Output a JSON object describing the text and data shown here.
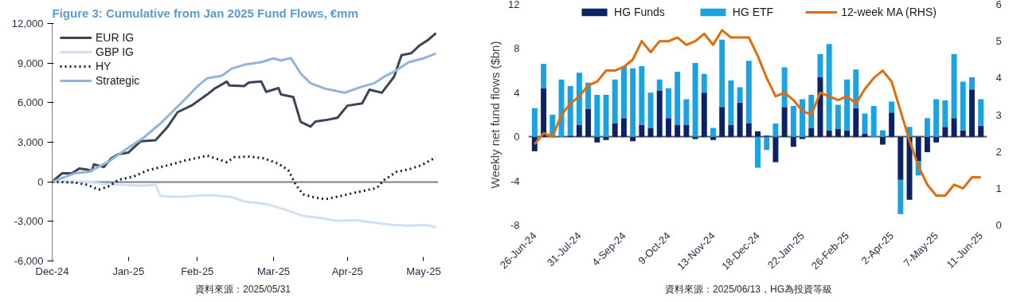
{
  "chart_data": [
    {
      "type": "line",
      "title": "Figure 3: Cumulative from Jan 2025 Fund Flows, €mm",
      "xlim": [
        "2024-12-31",
        "2025-06-06"
      ],
      "xticks": [
        {
          "value": "2024-12-31",
          "label": "Dec-24"
        },
        {
          "value": "2025-01-31",
          "label": "Jan-25"
        },
        {
          "value": "2025-02-28",
          "label": "Feb-25"
        },
        {
          "value": "2025-03-31",
          "label": "Mar-25"
        },
        {
          "value": "2025-04-30",
          "label": "Apr-25"
        },
        {
          "value": "2025-05-31",
          "label": "May-25"
        }
      ],
      "ylim": [
        -6000,
        12000
      ],
      "yticks": [
        {
          "value": -6000,
          "label": "-6,000"
        },
        {
          "value": -3000,
          "label": "-3,000"
        },
        0,
        {
          "value": 3000,
          "label": "3,000"
        },
        {
          "value": 6000,
          "label": "6,000"
        },
        {
          "value": 9000,
          "label": "9,000"
        },
        {
          "value": 12000,
          "label": "12,000"
        }
      ],
      "legend": "top left",
      "grid": false,
      "ref_lines": [
        {
          "axis": "y",
          "value": 0,
          "color": "#7f7f7f"
        }
      ],
      "annotations": [
        "資料來源：2025/05/31"
      ],
      "series": [
        {
          "name": "EUR IG",
          "color": "#3a4556",
          "line_style": "solid",
          "x": [
            "2024-12-31",
            "2025-01-04",
            "2025-01-08",
            "2025-01-11",
            "2025-01-14",
            "2025-01-16",
            "2025-01-17",
            "2025-01-21",
            "2025-01-24",
            "2025-01-27",
            "2025-01-31",
            "2025-02-05",
            "2025-02-11",
            "2025-02-16",
            "2025-02-20",
            "2025-02-26",
            "2025-03-04",
            "2025-03-07",
            "2025-03-12",
            "2025-03-13",
            "2025-03-19",
            "2025-03-21",
            "2025-03-26",
            "2025-03-28",
            "2025-04-02",
            "2025-04-03",
            "2025-04-08",
            "2025-04-11",
            "2025-04-15",
            "2025-04-17",
            "2025-04-21",
            "2025-04-26",
            "2025-04-30",
            "2025-05-06",
            "2025-05-09",
            "2025-05-14",
            "2025-05-19",
            "2025-05-22",
            "2025-05-26",
            "2025-05-29",
            "2025-06-02",
            "2025-06-05"
          ],
          "values": [
            0,
            640,
            640,
            1000,
            930,
            830,
            1320,
            1120,
            1780,
            2100,
            2220,
            3080,
            3150,
            4180,
            5280,
            5820,
            6620,
            7060,
            7600,
            7310,
            7260,
            7530,
            7600,
            6820,
            7110,
            6620,
            6430,
            4550,
            4180,
            4570,
            4670,
            4860,
            5770,
            5940,
            6990,
            6750,
            7970,
            9600,
            9750,
            10290,
            10780,
            11270
          ]
        },
        {
          "name": "GBP IG",
          "color": "#cfe1f3",
          "line_style": "solid",
          "x": [
            "2024-12-31",
            "2025-01-09",
            "2025-01-15",
            "2025-01-21",
            "2025-01-27",
            "2025-02-06",
            "2025-02-11",
            "2025-02-13",
            "2025-02-20",
            "2025-03-04",
            "2025-03-14",
            "2025-03-19",
            "2025-03-28",
            "2025-04-05",
            "2025-04-12",
            "2025-04-19",
            "2025-04-26",
            "2025-05-03",
            "2025-05-11",
            "2025-05-18",
            "2025-05-25",
            "2025-06-01",
            "2025-06-05"
          ],
          "values": [
            0,
            20,
            0,
            -170,
            -220,
            -290,
            -220,
            -1080,
            -1150,
            -1000,
            -1150,
            -1490,
            -1690,
            -2130,
            -2590,
            -2740,
            -2960,
            -2910,
            -3100,
            -3270,
            -3320,
            -3270,
            -3450
          ]
        },
        {
          "name": "HY",
          "color": "#1a1a1a",
          "line_style": "dotted",
          "x": [
            "2024-12-31",
            "2025-01-09",
            "2025-01-14",
            "2025-01-19",
            "2025-01-23",
            "2025-01-27",
            "2025-02-02",
            "2025-02-08",
            "2025-02-16",
            "2025-02-23",
            "2025-03-04",
            "2025-03-12",
            "2025-03-15",
            "2025-03-21",
            "2025-03-27",
            "2025-04-02",
            "2025-04-06",
            "2025-04-09",
            "2025-04-12",
            "2025-04-17",
            "2025-04-21",
            "2025-04-27",
            "2025-05-03",
            "2025-05-12",
            "2025-05-15",
            "2025-05-20",
            "2025-05-25",
            "2025-05-30",
            "2025-06-05"
          ],
          "values": [
            0,
            -50,
            -220,
            -590,
            -340,
            150,
            390,
            880,
            1250,
            1610,
            1980,
            1490,
            1860,
            1910,
            1780,
            1370,
            880,
            -220,
            -950,
            -1200,
            -1320,
            -1080,
            -830,
            -460,
            150,
            760,
            950,
            1250,
            1860
          ]
        },
        {
          "name": "Strategic",
          "color": "#8fb4de",
          "line_style": "solid",
          "x": [
            "2024-12-31",
            "2025-01-09",
            "2025-01-15",
            "2025-01-23",
            "2025-01-31",
            "2025-02-06",
            "2025-02-13",
            "2025-02-23",
            "2025-02-28",
            "2025-03-04",
            "2025-03-10",
            "2025-03-14",
            "2025-03-19",
            "2025-03-26",
            "2025-03-31",
            "2025-04-03",
            "2025-04-07",
            "2025-04-11",
            "2025-04-15",
            "2025-04-21",
            "2025-04-29",
            "2025-05-05",
            "2025-05-11",
            "2025-05-15",
            "2025-05-20",
            "2025-05-25",
            "2025-05-31",
            "2025-06-05"
          ],
          "values": [
            0,
            640,
            760,
            1540,
            2590,
            3320,
            4420,
            6260,
            7230,
            7850,
            8040,
            8580,
            8870,
            9070,
            9360,
            9190,
            9390,
            8210,
            7480,
            7060,
            6750,
            7160,
            7480,
            7970,
            8460,
            9070,
            9360,
            9730
          ]
        }
      ]
    },
    {
      "type": "bar",
      "stacked": true,
      "ylabel": "Weekly net fund flows ($bn)",
      "categories": [
        "26-Jun-24",
        null,
        null,
        null,
        null,
        "31-Jul-24",
        null,
        null,
        null,
        null,
        "4-Sep-24",
        null,
        null,
        null,
        null,
        "9-Oct-24",
        null,
        null,
        null,
        null,
        "13-Nov-24",
        null,
        null,
        null,
        null,
        "18-Dec-24",
        null,
        null,
        null,
        null,
        "22-Jan-25",
        null,
        null,
        null,
        null,
        "26-Feb-25",
        null,
        null,
        null,
        null,
        "2-Apr-25",
        null,
        null,
        null,
        null,
        "7-May-25",
        null,
        null,
        null,
        null,
        "11-Jun-25"
      ],
      "ylim": [
        -8,
        12
      ],
      "yticks": [
        -8,
        -4,
        0,
        4,
        8,
        12
      ],
      "y2lim": [
        0,
        6
      ],
      "y2ticks": [
        0,
        1,
        2,
        3,
        4,
        5,
        6
      ],
      "legend": "top",
      "grid": false,
      "ref_lines": [
        {
          "axis": "y",
          "value": 0,
          "color": "#595959"
        }
      ],
      "annotations": [
        "資料來源：2025/06/13，HG為投資等級"
      ],
      "series": [
        {
          "name": "HG Funds",
          "color": "#0b2265",
          "values": [
            -1.3,
            4.4,
            0,
            0,
            0.1,
            1.1,
            2.5,
            -0.5,
            -0.3,
            1.2,
            1.7,
            -0.4,
            1.1,
            0.8,
            4.2,
            1.7,
            1.1,
            1.1,
            -0.2,
            4.0,
            -0.3,
            2.7,
            1.1,
            3.1,
            1.2,
            0.5,
            0.1,
            -2.3,
            2.7,
            -0.9,
            -0.2,
            0.8,
            5.4,
            0.6,
            0.7,
            0.6,
            2.6,
            0.3,
            0,
            -0.7,
            2.2,
            -3.9,
            -5.7,
            -2.2,
            -1.4,
            -0.5,
            0.9,
            1.7,
            0.6,
            4.3,
            1.0
          ]
        },
        {
          "name": "HG ETF",
          "color": "#1aa3e0",
          "values": [
            2.6,
            2.2,
            2.0,
            5.2,
            4.5,
            4.7,
            2.4,
            3.8,
            3.8,
            4.0,
            4.7,
            6.2,
            5.3,
            3.2,
            1.0,
            2.7,
            4.8,
            2.3,
            6.7,
            1.7,
            0.8,
            6.1,
            4.0,
            1.4,
            5.7,
            -2.8,
            -1.2,
            1.2,
            3.6,
            2.8,
            3.4,
            3.0,
            2.1,
            7.8,
            2.2,
            4.6,
            3.5,
            1.8,
            2.8,
            0.6,
            1.0,
            -3.1,
            0.9,
            -1.3,
            1.7,
            3.4,
            2.4,
            5.8,
            4.4,
            1.1,
            2.4
          ]
        },
        {
          "name": "12-week MA (RHS)",
          "type": "line",
          "axis": "y2",
          "color": "#e36c0a",
          "values": [
            2.2,
            2.5,
            2.4,
            3.0,
            3.3,
            3.5,
            3.8,
            3.9,
            4.2,
            4.2,
            4.3,
            4.5,
            5.0,
            4.7,
            5.0,
            5.0,
            5.1,
            4.9,
            5.0,
            5.2,
            4.9,
            5.3,
            5.1,
            5.1,
            5.1,
            4.6,
            4.0,
            3.5,
            3.6,
            3.4,
            3.1,
            3.0,
            3.6,
            3.5,
            3.4,
            3.5,
            3.3,
            3.7,
            4.0,
            4.2,
            3.9,
            3.1,
            2.3,
            1.6,
            1.1,
            0.8,
            0.8,
            1.1,
            1.0,
            1.3,
            1.3
          ]
        }
      ]
    }
  ]
}
